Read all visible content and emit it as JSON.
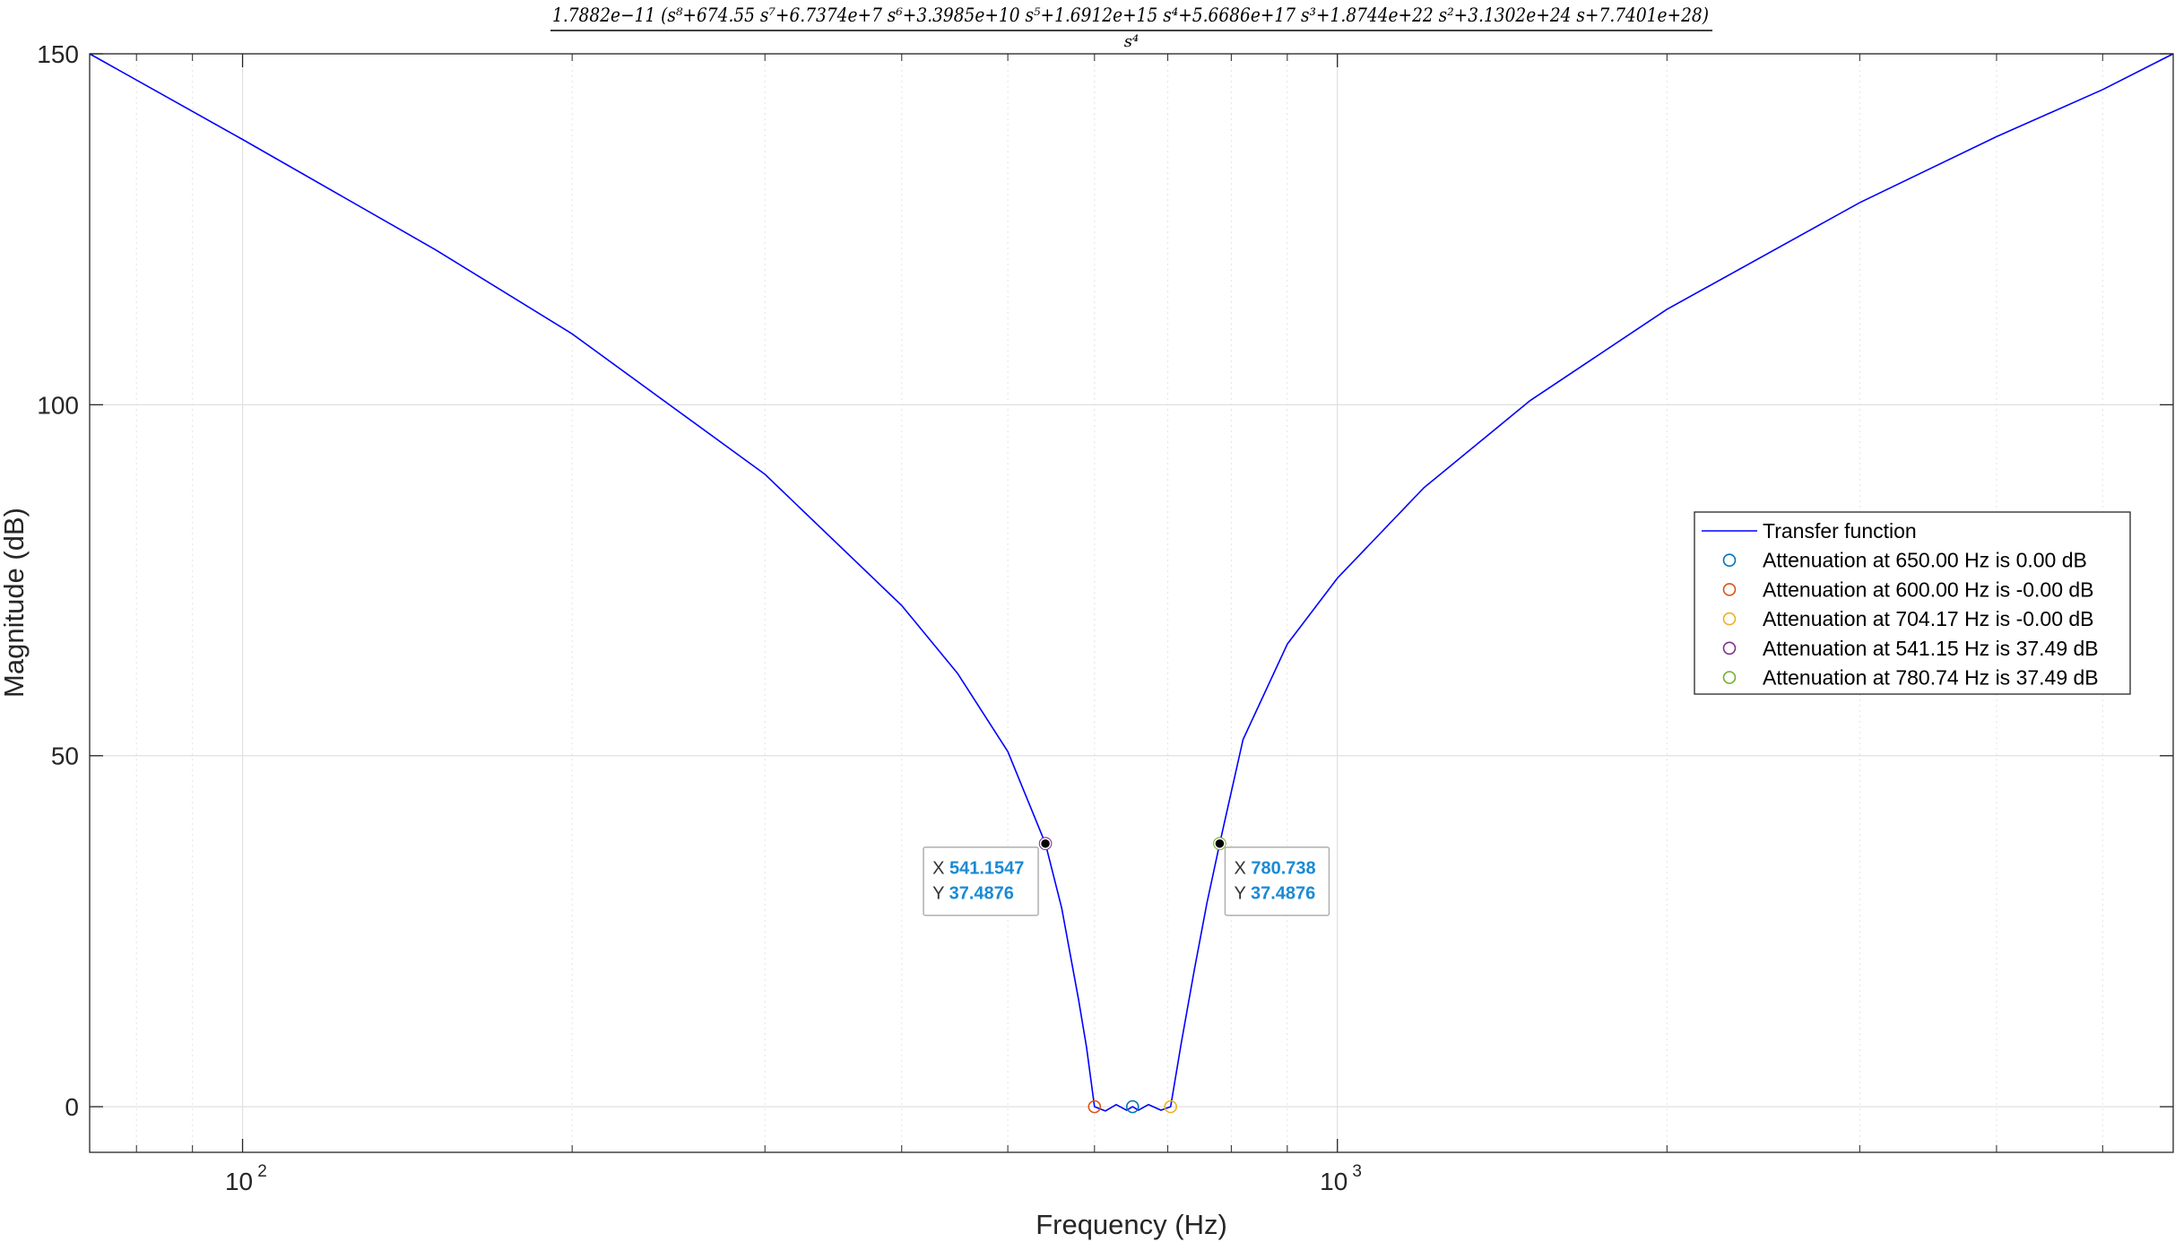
{
  "chart_data": {
    "type": "line",
    "title": "1.7882e−11 (s⁸+674.55 s⁷+6.7374e+7 s⁶+3.3985e+10 s⁵+1.6912e+15 s⁴+5.6686e+17 s³+1.8744e+22 s²+3.1302e+24 s+7.7401e+28)",
    "title_denominator": "s⁴",
    "xlabel": "Frequency (Hz)",
    "ylabel": "Magnitude (dB)",
    "xscale": "log",
    "xlim": [
      72.5,
      5800
    ],
    "ylim": [
      -6.5,
      150
    ],
    "x_ticks": [
      {
        "value": 100,
        "base": "10",
        "exp": "2"
      },
      {
        "value": 1000,
        "base": "10",
        "exp": "3"
      }
    ],
    "y_ticks": [
      0,
      50,
      100,
      150
    ],
    "grid": true,
    "legend_position": "right",
    "series": [
      {
        "name": "Transfer function",
        "color": "#0000ff",
        "x": [
          72.5,
          100,
          150,
          200,
          300,
          400,
          450,
          500,
          541.15,
          560,
          580,
          590,
          600,
          614,
          628,
          642,
          650,
          658,
          672,
          690,
          704.17,
          720,
          740,
          760,
          780.74,
          820,
          900,
          1000,
          1200,
          1500,
          2000,
          3000,
          4000,
          5000,
          5800
        ],
        "y": [
          150,
          137.8,
          122.1,
          110.1,
          90.1,
          71.4,
          61.7,
          50.6,
          37.49,
          28.3,
          15.4,
          8.5,
          0,
          -0.6,
          0.3,
          -0.5,
          0,
          -0.5,
          0.3,
          -0.5,
          0,
          9.0,
          19.4,
          29.0,
          37.49,
          52.3,
          65.9,
          75.3,
          88.2,
          100.6,
          113.6,
          128.8,
          138.2,
          144.9,
          150
        ]
      },
      {
        "name": "Attenuation at 650.00 Hz is 0.00 dB",
        "marker": "circle",
        "color": "#0072bd",
        "x": [
          650.0
        ],
        "y": [
          0.0
        ]
      },
      {
        "name": "Attenuation at 600.00 Hz is -0.00 dB",
        "marker": "circle",
        "color": "#d95319",
        "x": [
          600.0
        ],
        "y": [
          0.0
        ]
      },
      {
        "name": "Attenuation at 704.17 Hz is -0.00 dB",
        "marker": "circle",
        "color": "#edb120",
        "x": [
          704.17
        ],
        "y": [
          0.0
        ]
      },
      {
        "name": "Attenuation at 541.15 Hz is 37.49 dB",
        "marker": "circle",
        "color": "#7e2f8e",
        "x": [
          541.15
        ],
        "y": [
          37.49
        ]
      },
      {
        "name": "Attenuation at 780.74 Hz is 37.49 dB",
        "marker": "circle",
        "color": "#77ac30",
        "x": [
          780.74
        ],
        "y": [
          37.49
        ]
      }
    ],
    "datatips": [
      {
        "x_label": "X",
        "x_value": "541.1547",
        "y_label": "Y",
        "y_value": "37.4876",
        "x": 541.1547,
        "y": 37.4876
      },
      {
        "x_label": "X",
        "x_value": "780.738",
        "y_label": "Y",
        "y_value": "37.4876",
        "x": 780.738,
        "y": 37.4876
      }
    ]
  }
}
